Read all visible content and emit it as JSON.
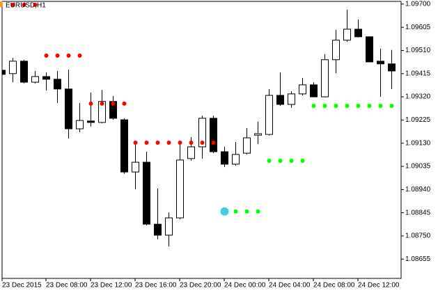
{
  "chart_data": {
    "type": "candlestick",
    "title": "EURUSD,H1",
    "categories": [
      "23 Dec 2015",
      null,
      null,
      null,
      "23 Dec 08:00",
      null,
      null,
      null,
      "23 Dec 12:00",
      null,
      null,
      null,
      "23 Dec 16:00",
      null,
      null,
      null,
      "23 Dec 20:00",
      null,
      null,
      null,
      "24 Dec 00:00",
      null,
      null,
      null,
      "24 Dec 04:00",
      null,
      null,
      null,
      "24 Dec 08:00",
      null,
      null,
      null,
      "24 Dec 12:00",
      null,
      null,
      null
    ],
    "open": [
      1.09429,
      1.09415,
      1.09466,
      1.0938,
      1.09403,
      1.09392,
      1.09352,
      1.09189,
      1.09221,
      1.09215,
      1.09301,
      1.09226,
      1.09012,
      1.09052,
      1.08798,
      1.08753,
      1.08824,
      1.09067,
      1.09115,
      1.09232,
      1.09095,
      1.09044,
      1.09089,
      1.09163,
      1.09166,
      1.09326,
      1.09289,
      1.09332,
      1.09369,
      1.0932,
      1.09472,
      1.09552,
      1.09597,
      1.09566,
      1.09466,
      1.09455
    ],
    "high": [
      1.09435,
      1.0948,
      1.09472,
      1.09426,
      1.0942,
      1.09426,
      1.09432,
      1.09295,
      1.09338,
      1.09349,
      1.09323,
      1.09232,
      1.09126,
      1.09095,
      1.08944,
      1.08847,
      1.09132,
      1.09155,
      1.09243,
      1.09243,
      1.09115,
      1.09135,
      1.09192,
      1.09218,
      1.09352,
      1.0942,
      1.09343,
      1.09397,
      1.0938,
      1.09495,
      1.09594,
      1.09677,
      1.09637,
      1.09566,
      1.09517,
      1.09512
    ],
    "low": [
      1.09406,
      1.0938,
      1.09375,
      1.09375,
      1.09346,
      1.09295,
      1.09149,
      1.09175,
      1.09198,
      1.09212,
      1.09226,
      1.09004,
      1.08941,
      1.08793,
      1.08736,
      1.08707,
      1.08818,
      1.09058,
      1.09067,
      1.09089,
      1.09032,
      1.09038,
      1.09084,
      1.09126,
      1.09161,
      1.09283,
      1.09275,
      1.09326,
      1.09318,
      1.09318,
      1.09417,
      1.09546,
      1.09563,
      1.09463,
      1.0932,
      1.09352
    ],
    "close": [
      1.09412,
      1.09466,
      1.0938,
      1.09403,
      1.09392,
      1.09352,
      1.09189,
      1.09223,
      1.09215,
      1.09301,
      1.09232,
      1.09012,
      1.09052,
      1.08798,
      1.08753,
      1.08824,
      1.09061,
      1.09115,
      1.09232,
      1.09095,
      1.09044,
      1.09084,
      1.09152,
      1.09169,
      1.09326,
      1.09289,
      1.09332,
      1.09369,
      1.0932,
      1.09472,
      1.09552,
      1.09597,
      1.09566,
      1.09463,
      1.09455,
      1.09426
    ],
    "up_color": "#ffffff",
    "down_color": "#000000",
    "series": [
      {
        "color": "#ff0000",
        "values": [
          null,
          1.09697,
          1.09697,
          1.09697,
          1.09489,
          1.09489,
          1.09489,
          1.09489,
          1.09292,
          1.09292,
          1.09292,
          1.09292,
          1.09132,
          1.09132,
          1.09132,
          1.09132,
          1.09132,
          1.09132,
          1.09132,
          1.09132,
          null,
          null,
          null,
          null,
          null,
          null,
          null,
          null,
          null,
          null,
          null,
          null,
          null,
          null,
          null,
          null
        ]
      },
      {
        "color": "#00ff00",
        "values": [
          null,
          null,
          null,
          null,
          null,
          null,
          null,
          null,
          null,
          null,
          null,
          null,
          null,
          null,
          null,
          null,
          null,
          null,
          null,
          null,
          null,
          1.0885,
          1.0885,
          1.0885,
          1.09058,
          1.09058,
          1.09058,
          1.09058,
          1.09283,
          1.09283,
          1.09283,
          1.09283,
          1.09283,
          1.09283,
          1.09283,
          1.09283
        ]
      },
      {
        "color": "#40d0d8",
        "values": [
          null,
          null,
          null,
          null,
          null,
          null,
          null,
          null,
          null,
          null,
          null,
          null,
          null,
          null,
          null,
          null,
          null,
          null,
          null,
          null,
          1.0885,
          null,
          null,
          null,
          null,
          null,
          null,
          null,
          null,
          null,
          null,
          null,
          null,
          null,
          null,
          null
        ]
      }
    ],
    "ylim": [
      1.08576,
      1.09711
    ],
    "yticks": [
      {
        "value": 1.097,
        "label": "1.09700"
      },
      1.09605,
      {
        "value": 1.0951,
        "label": "1.09510"
      },
      1.09415,
      {
        "value": 1.0932,
        "label": "1.09320"
      },
      1.09225,
      {
        "value": 1.0913,
        "label": "1.09130"
      },
      1.09035,
      {
        "value": 1.0894,
        "label": "1.08940"
      },
      1.08845,
      {
        "value": 1.0875,
        "label": "1.08750"
      },
      1.08655
    ]
  }
}
